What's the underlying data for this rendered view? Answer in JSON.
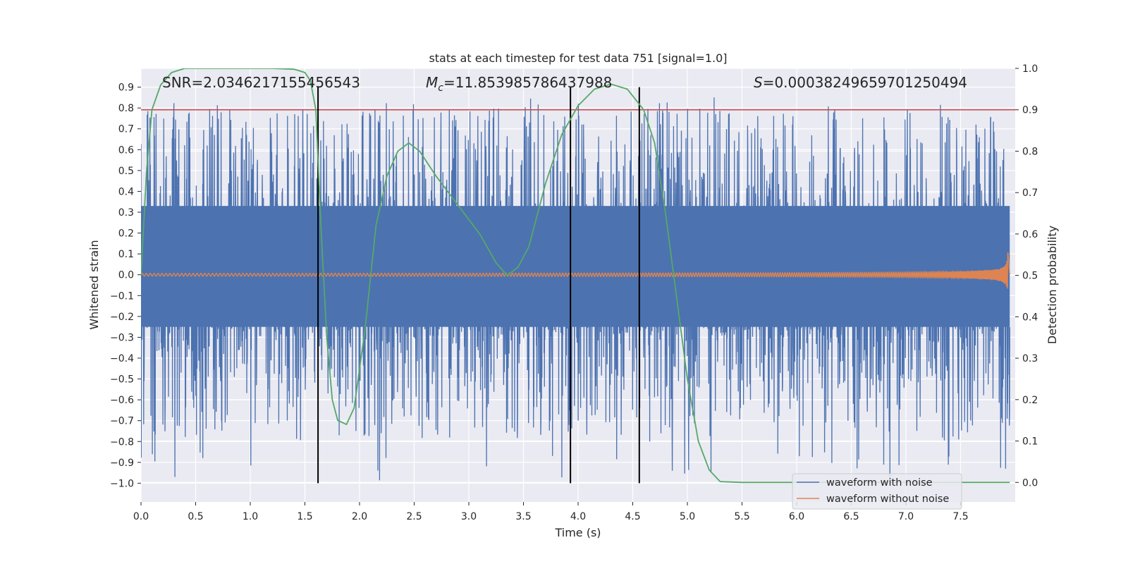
{
  "chart_data": {
    "type": "line",
    "title": "stats at each timestep for test data 751 [signal=1.0]",
    "xlabel": "Time (s)",
    "ylabel": "Whitened strain",
    "y2label": "Detection probability",
    "xlim": [
      0.0,
      8.0
    ],
    "ylim": [
      -1.09,
      0.99
    ],
    "y2lim": [
      -0.0472,
      1.0
    ],
    "xticks": [
      0.0,
      0.5,
      1.0,
      1.5,
      2.0,
      2.5,
      3.0,
      3.5,
      4.0,
      4.5,
      5.0,
      5.5,
      6.0,
      6.5,
      7.0,
      7.5
    ],
    "xtick_labels": [
      "0.0",
      "0.5",
      "1.0",
      "1.5",
      "2.0",
      "2.5",
      "3.0",
      "3.5",
      "4.0",
      "4.5",
      "5.0",
      "5.5",
      "6.0",
      "6.5",
      "7.0",
      "7.5"
    ],
    "yticks": [
      0.9,
      0.8,
      0.7,
      0.6,
      0.5,
      0.4,
      0.3,
      0.2,
      0.1,
      0.0,
      -0.1,
      -0.2,
      -0.3,
      -0.4,
      -0.5,
      -0.6,
      -0.7,
      -0.8,
      -0.9,
      -1.0
    ],
    "ytick_labels": [
      "0.9",
      "0.8",
      "0.7",
      "0.6",
      "0.5",
      "0.4",
      "0.3",
      "0.2",
      "0.1",
      "0.0",
      "−0.1",
      "−0.2",
      "−0.3",
      "−0.4",
      "−0.5",
      "−0.6",
      "−0.7",
      "−0.8",
      "−0.9",
      "−1.0"
    ],
    "y2ticks": [
      1.0,
      0.9,
      0.8,
      0.7,
      0.6,
      0.5,
      0.4,
      0.3,
      0.2,
      0.1,
      0.0
    ],
    "y2tick_labels": [
      "1.0",
      "0.9",
      "0.8",
      "0.7",
      "0.6",
      "0.5",
      "0.4",
      "0.3",
      "0.2",
      "0.1",
      "0.0"
    ],
    "annotations": {
      "snr": "SNR=2.0346217155456543",
      "mc_symbol": "M",
      "mc_sub": "c",
      "mc_value": "=11.853985786437988",
      "s_symbol": "S",
      "s_value": "=0.0003824965970125049​4"
    },
    "threshold_line": {
      "y2": 0.9,
      "color": "#c44e52"
    },
    "vertical_lines": [
      1.62,
      3.93,
      4.56
    ],
    "vertical_lines_range": [
      -1.0,
      0.9
    ],
    "series": [
      {
        "name": "waveform with noise",
        "color": "#4c72b0",
        "description": "dense whitened noise, x from 0.0 to 7.95 s",
        "x_range": [
          0.0,
          7.95
        ],
        "core_band": [
          -0.25,
          0.33
        ],
        "spike_max": 0.86,
        "spike_min": -0.99
      },
      {
        "name": "waveform without noise",
        "color": "#dd8452",
        "description": "chirp signal, amplitude growing near merger at ~7.93 s",
        "x_range": [
          0.0,
          7.95
        ],
        "peak_amplitude": 0.14
      },
      {
        "name": "detection probability",
        "color": "#55a868",
        "axis": "y2",
        "x": [
          0.0,
          0.05,
          0.1,
          0.18,
          0.28,
          0.4,
          0.6,
          0.8,
          1.0,
          1.2,
          1.4,
          1.5,
          1.55,
          1.6,
          1.65,
          1.7,
          1.75,
          1.8,
          1.88,
          1.95,
          2.05,
          2.15,
          2.25,
          2.35,
          2.45,
          2.55,
          2.7,
          2.9,
          3.1,
          3.25,
          3.35,
          3.45,
          3.55,
          3.7,
          3.85,
          4.0,
          4.15,
          4.3,
          4.45,
          4.6,
          4.7,
          4.8,
          4.9,
          5.0,
          5.1,
          5.2,
          5.3,
          5.5,
          6.0,
          6.5,
          7.0,
          7.5,
          7.95
        ],
        "y": [
          0.5,
          0.75,
          0.9,
          0.96,
          0.99,
          1.0,
          1.0,
          1.0,
          1.0,
          1.0,
          0.998,
          0.99,
          0.97,
          0.9,
          0.6,
          0.35,
          0.2,
          0.15,
          0.14,
          0.18,
          0.37,
          0.62,
          0.74,
          0.8,
          0.82,
          0.8,
          0.74,
          0.67,
          0.6,
          0.53,
          0.5,
          0.52,
          0.57,
          0.72,
          0.84,
          0.91,
          0.95,
          0.962,
          0.95,
          0.9,
          0.82,
          0.65,
          0.45,
          0.25,
          0.1,
          0.03,
          0.002,
          0.0,
          0.0,
          0.0,
          0.0,
          0.0,
          0.0
        ]
      }
    ],
    "legend": {
      "placement": "lower-right",
      "entries": [
        {
          "label": "waveform with noise",
          "color": "#4c72b0"
        },
        {
          "label": "waveform without noise",
          "color": "#dd8452"
        }
      ]
    }
  }
}
